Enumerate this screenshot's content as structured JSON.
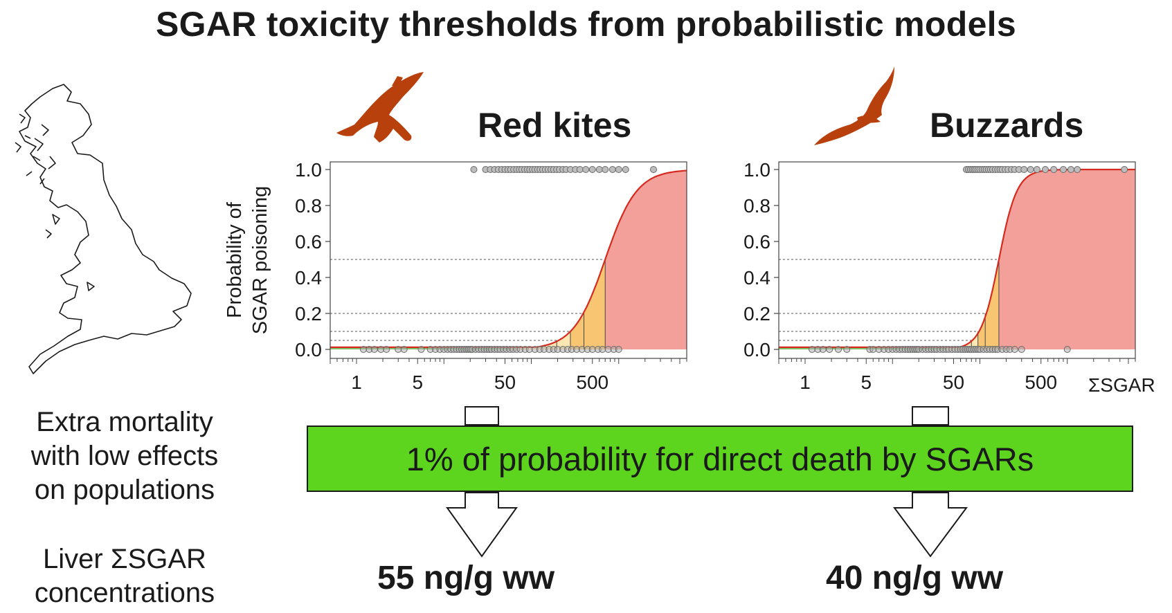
{
  "title": "SGAR toxicity thresholds from probabilistic models",
  "side": {
    "effects_lines": [
      "Extra mortality",
      "with low effects",
      "on populations"
    ],
    "conc_lines": [
      "Liver ΣSGAR",
      "concentrations"
    ]
  },
  "banner_text": "1% of probability for direct death by SGARs",
  "colors": {
    "banner": "#5dd41e",
    "curve": "#d62a1e",
    "bird": "#b8400d",
    "zone_red": "#f4a09a",
    "zone_orange": "#f8c673",
    "zone_yellow": "#fbe6b4",
    "zone_green": "#7dc26a"
  },
  "chart_data": [
    {
      "type": "line",
      "title": "Red kites",
      "ylabel_lines": [
        "Probability of",
        "SGAR poisoning"
      ],
      "xlabel": "",
      "x_scale": "log",
      "xlim": [
        0.5,
        6000
      ],
      "ylim": [
        0,
        1.0
      ],
      "yticks": [
        "0.0",
        "0.2",
        "0.4",
        "0.6",
        "0.8",
        "1.0"
      ],
      "xticks": [
        "1",
        "5",
        "50",
        "500"
      ],
      "midpoint": 700,
      "slope": 2.4,
      "baseline": 0.012,
      "probability_thresholds": [
        0.01,
        0.05,
        0.1,
        0.2,
        0.5
      ],
      "threshold_concentrations": [
        55,
        195,
        280,
        400,
        700
      ],
      "poisoned_points": [
        22,
        30,
        34,
        38,
        42,
        46,
        50,
        54,
        58,
        63,
        68,
        73,
        78,
        84,
        90,
        96,
        103,
        110,
        118,
        126,
        135,
        145,
        156,
        168,
        180,
        195,
        210,
        230,
        250,
        280,
        320,
        360,
        420,
        500,
        600,
        700,
        850,
        1000,
        1200,
        2500
      ],
      "nonpoisoned_points": [
        1.2,
        1.4,
        1.6,
        1.9,
        2.2,
        3.0,
        3.5,
        5.5,
        7,
        8,
        9,
        10,
        11,
        12,
        13,
        14,
        15,
        16,
        17,
        18,
        19,
        20,
        21,
        23,
        25,
        27,
        29,
        31,
        33,
        35,
        38,
        41,
        44,
        48,
        52,
        57,
        62,
        68,
        75,
        85,
        95,
        110,
        125,
        140,
        160,
        180,
        200,
        230,
        260,
        290,
        330,
        380,
        440,
        500,
        580,
        650,
        760,
        880,
        1000
      ],
      "result": "55 ng/g ww"
    },
    {
      "type": "line",
      "title": "Buzzards",
      "ylabel_lines": [],
      "xlabel": "ΣSGAR",
      "x_scale": "log",
      "xlim": [
        0.5,
        6000
      ],
      "ylim": [
        0,
        1.0
      ],
      "yticks": [
        "0.0",
        "0.2",
        "0.4",
        "0.6",
        "0.8",
        "1.0"
      ],
      "xticks": [
        "1",
        "5",
        "50",
        "500"
      ],
      "midpoint": 165,
      "slope": 4.2,
      "baseline": 0.012,
      "probability_thresholds": [
        0.01,
        0.05,
        0.1,
        0.2,
        0.5
      ],
      "threshold_concentrations": [
        40,
        80,
        95,
        115,
        165
      ],
      "poisoned_points": [
        70,
        74,
        78,
        82,
        86,
        90,
        95,
        100,
        106,
        112,
        118,
        125,
        132,
        140,
        150,
        160,
        170,
        180,
        195,
        210,
        230,
        250,
        280,
        320,
        380,
        450,
        560,
        700,
        900,
        1100,
        1300,
        4500
      ],
      "nonpoisoned_points": [
        1.2,
        1.4,
        1.6,
        1.9,
        2.4,
        3.0,
        5.5,
        6,
        7,
        8,
        9,
        10,
        11,
        12,
        13,
        14,
        15,
        16,
        17,
        18,
        19,
        20,
        22,
        24,
        26,
        28,
        30,
        32,
        35,
        38,
        41,
        44,
        48,
        52,
        56,
        60,
        64,
        68,
        72,
        76,
        80,
        85,
        90,
        95,
        100,
        110,
        120,
        130,
        140,
        150,
        160,
        180,
        200,
        220,
        250,
        300,
        1000
      ],
      "result": "40 ng/g ww"
    }
  ]
}
